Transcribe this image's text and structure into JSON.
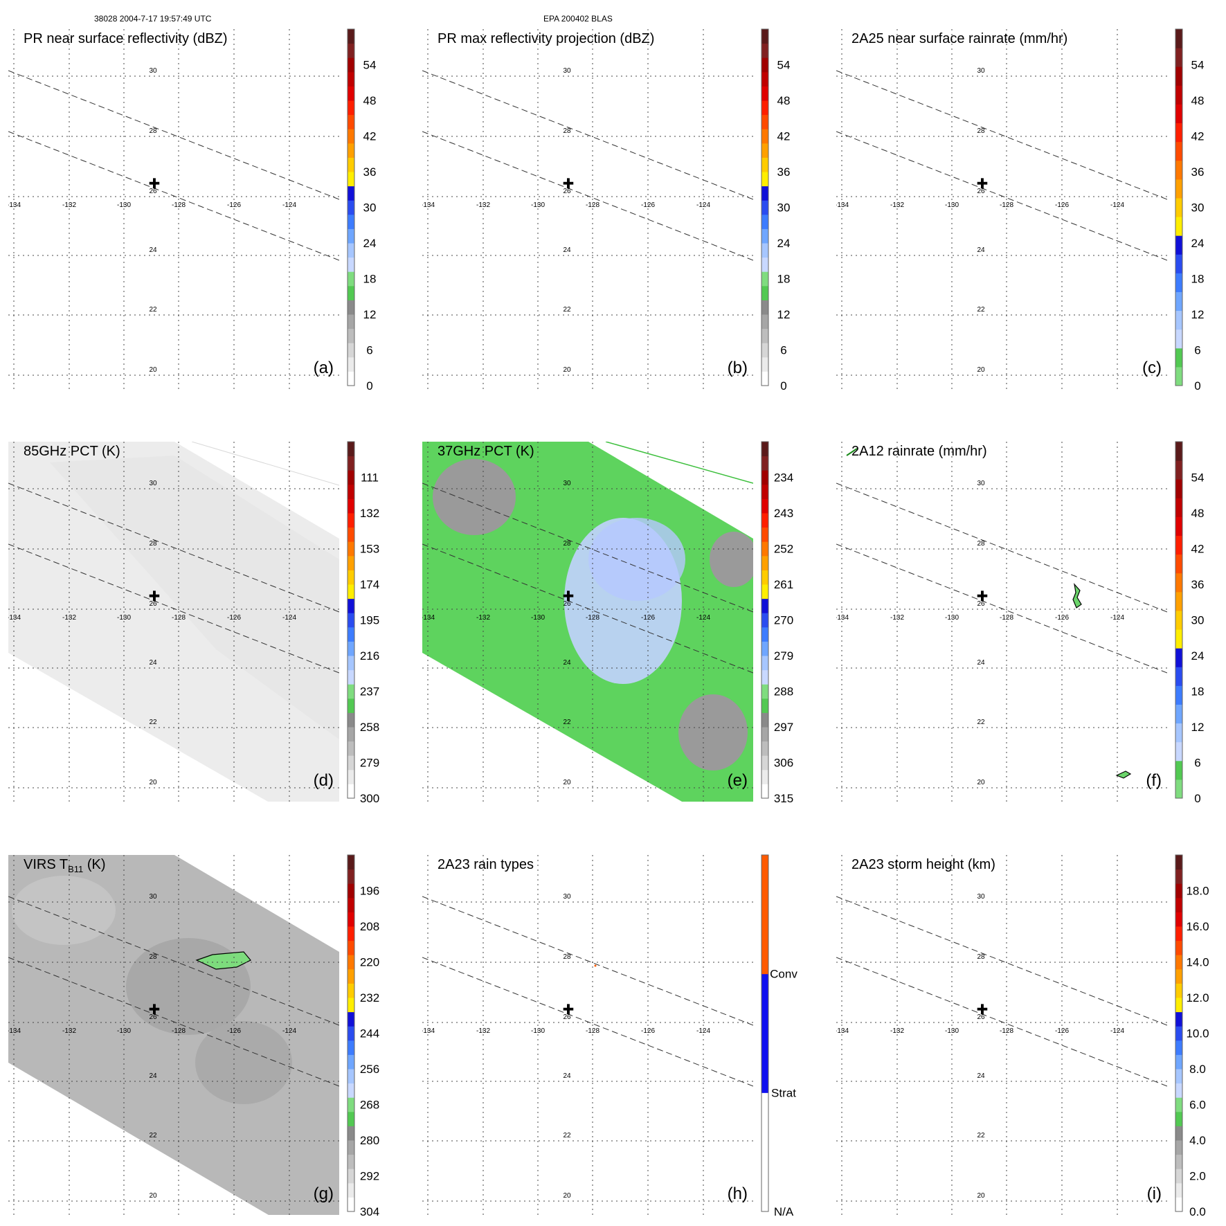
{
  "header": {
    "left": "38028 2004-7-17 19:57:49 UTC",
    "center": "EPA 200402 BLAS"
  },
  "axes": {
    "lon_labels": [
      "-134",
      "-132",
      "-130",
      "-128",
      "-126",
      "-124"
    ],
    "lat_labels": [
      "30",
      "28",
      "26",
      "24",
      "22",
      "20"
    ]
  },
  "colors": {
    "standard_scale": [
      "#ffffff",
      "#ebebeb",
      "#d6d6d6",
      "#bdbdbd",
      "#a6a6a6",
      "#8a8a8a",
      "#52c952",
      "#7fdc7f",
      "#c8d8ff",
      "#a6c6ff",
      "#6fa6ff",
      "#3d7cff",
      "#2a4cf0",
      "#1010d8",
      "#ffee00",
      "#ffcc00",
      "#ffa000",
      "#ff7800",
      "#ff4a00",
      "#ff1e00",
      "#e00000",
      "#c00000",
      "#a00000",
      "#802020",
      "#5a1a1a"
    ],
    "rain_scale": [
      "#7fdc7f",
      "#52c952",
      "#c8d8ff",
      "#a6c6ff",
      "#6fa6ff",
      "#3d7cff",
      "#2a4cf0",
      "#1010d8",
      "#ffee00",
      "#ffcc00",
      "#ffa000",
      "#ff7800",
      "#ff4a00",
      "#ff1e00",
      "#e00000",
      "#c00000",
      "#a00000",
      "#802020",
      "#5a1a1a"
    ],
    "raintype_scale": [
      "#ffffff",
      "#ffffff",
      "#ffffff",
      "#1010f0",
      "#1010f0",
      "#1010f0",
      "#ff5a00",
      "#ff5a00",
      "#ff5a00"
    ]
  },
  "panels": [
    {
      "id": "a",
      "title": "PR near surface reflectivity (dBZ)",
      "label": "(a)",
      "ticks": [
        "0",
        "6",
        "12",
        "18",
        "24",
        "30",
        "36",
        "42",
        "48",
        "54"
      ],
      "scale": "standard_scale",
      "swath": "none",
      "track": false
    },
    {
      "id": "b",
      "title": "PR max reflectivity projection (dBZ)",
      "label": "(b)",
      "ticks": [
        "0",
        "6",
        "12",
        "18",
        "24",
        "30",
        "36",
        "42",
        "48",
        "54"
      ],
      "scale": "standard_scale",
      "swath": "none",
      "track": false
    },
    {
      "id": "c",
      "title": "2A25 near surface rainrate (mm/hr)",
      "label": "(c)",
      "ticks": [
        "0",
        "6",
        "12",
        "18",
        "24",
        "30",
        "36",
        "42",
        "48",
        "54"
      ],
      "scale": "rain_scale",
      "swath": "none",
      "track": false
    },
    {
      "id": "d",
      "title": "85GHz PCT (K)",
      "label": "(d)",
      "ticks": [
        "300",
        "279",
        "258",
        "237",
        "216",
        "195",
        "174",
        "153",
        "132",
        "111"
      ],
      "scale": "standard_scale",
      "swath": "pct85",
      "track": true
    },
    {
      "id": "e",
      "title": "37GHz PCT (K)",
      "label": "(e)",
      "ticks": [
        "315",
        "306",
        "297",
        "288",
        "279",
        "270",
        "261",
        "252",
        "243",
        "234"
      ],
      "scale": "standard_scale",
      "swath": "pct37",
      "track": true
    },
    {
      "id": "f",
      "title": "2A12 rainrate (mm/hr)",
      "label": "(f)",
      "ticks": [
        "0",
        "6",
        "12",
        "18",
        "24",
        "30",
        "36",
        "42",
        "48",
        "54"
      ],
      "scale": "rain_scale",
      "swath": "none",
      "track": false
    },
    {
      "id": "g",
      "title_main": "VIRS T",
      "title_sub": "B11",
      "title_end": " (K)",
      "label": "(g)",
      "ticks": [
        "304",
        "292",
        "280",
        "268",
        "256",
        "244",
        "232",
        "220",
        "208",
        "196"
      ],
      "scale": "standard_scale",
      "swath": "virs",
      "track": false
    },
    {
      "id": "h",
      "title": "2A23 rain types",
      "label": "(h)",
      "ticks": [
        "N/A",
        "Strat",
        "Conv"
      ],
      "scale": "raintype_scale",
      "swath": "none",
      "track": false
    },
    {
      "id": "i",
      "title": "2A23 storm height (km)",
      "label": "(i)",
      "ticks": [
        "0.0",
        "2.0",
        "4.0",
        "6.0",
        "8.0",
        "10.0",
        "12.0",
        "14.0",
        "16.0",
        "18.0"
      ],
      "scale": "standard_scale",
      "swath": "none",
      "track": false
    }
  ]
}
